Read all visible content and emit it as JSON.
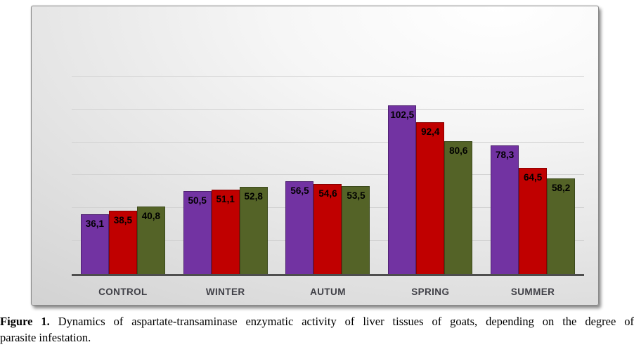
{
  "chart_data": {
    "type": "bar",
    "title": "",
    "xlabel": "",
    "ylabel": "",
    "legend": "none",
    "grid": true,
    "gridline_step": 20,
    "ylim": [
      0,
      140
    ],
    "decimal_separator": ",",
    "categories": [
      "CONTROL",
      "WINTER",
      "AUTUM",
      "SPRING",
      "SUMMER"
    ],
    "series": [
      {
        "name": "purple",
        "color": "#7233A2",
        "border_color": "#4E2170",
        "values": [
          36.1,
          50.5,
          56.5,
          102.5,
          78.3
        ],
        "labels": [
          "36,1",
          "50,5",
          "56,5",
          "102,5",
          "78,3"
        ]
      },
      {
        "name": "red",
        "color": "#C00000",
        "border_color": "#8B0000",
        "values": [
          38.5,
          51.1,
          54.6,
          92.4,
          64.5
        ],
        "labels": [
          "38,5",
          "51,1",
          "54,6",
          "92,4",
          "64,5"
        ]
      },
      {
        "name": "olive",
        "color": "#546327",
        "border_color": "#3C4A1C",
        "values": [
          40.8,
          52.8,
          53.5,
          80.6,
          58.2
        ],
        "labels": [
          "40,8",
          "52,8",
          "53,5",
          "80,6",
          "58,2"
        ]
      }
    ]
  },
  "colors": {
    "axis_line": "#4E4E4E",
    "gridline": "#D2D2D2",
    "category_label": "#3F3F46",
    "value_label": "#000000",
    "frame_border": "#8A8A8A"
  },
  "caption": {
    "label": "Figure 1.",
    "line1": "Dynamics of aspartate-transaminase enzymatic activity of liver tissues of goats, depending on the degree of",
    "line2": "parasite infestation."
  }
}
